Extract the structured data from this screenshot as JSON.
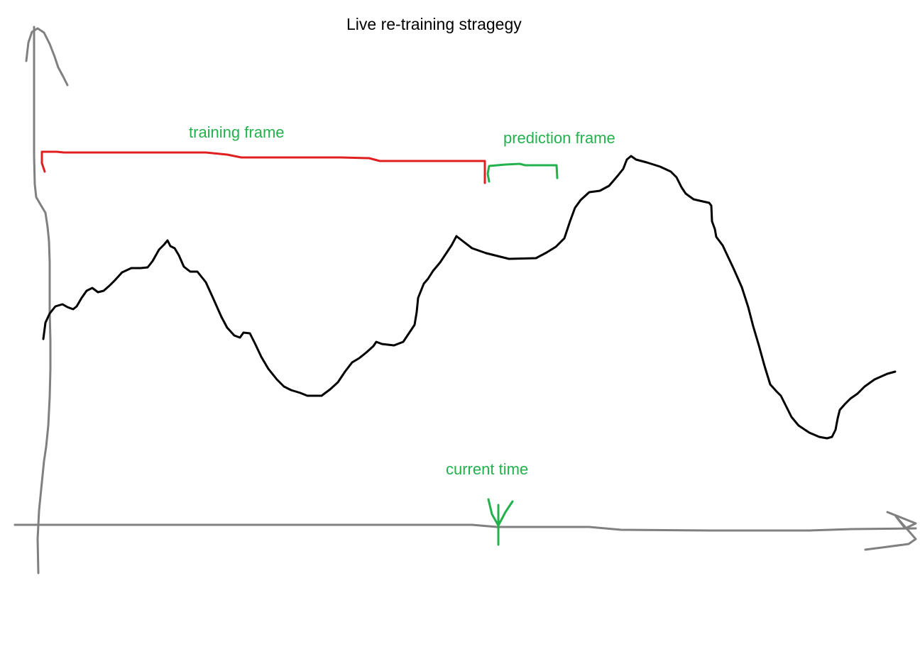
{
  "title": "Live re-training stragegy",
  "labels": {
    "training_frame": "training frame",
    "prediction_frame": "prediction frame",
    "current_time": "current time"
  },
  "colors": {
    "axis": "#808080",
    "curve": "#000000",
    "training": "#e02020",
    "prediction": "#22b14c",
    "label_text": "#22b14c"
  }
}
